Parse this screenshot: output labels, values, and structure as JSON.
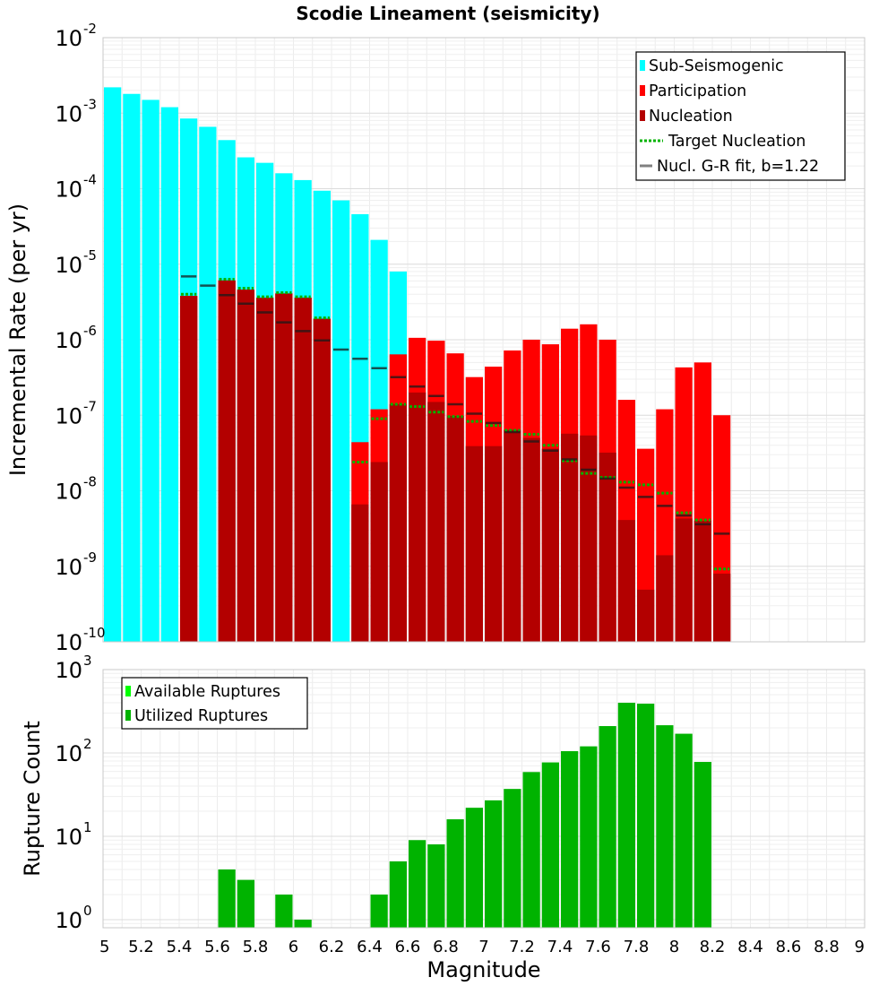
{
  "chart_data": [
    {
      "type": "bar",
      "title": "Scodie Lineament (seismicity)",
      "ylabel": "Incremental Rate (per yr)",
      "yscale": "log",
      "ylim": [
        1e-10,
        0.01
      ],
      "xlim": [
        5,
        9
      ],
      "y_tick_exponents": [
        -2,
        -3,
        -4,
        -5,
        -6,
        -7,
        -8,
        -9,
        -10
      ],
      "legend_position": "top-right",
      "grid": true,
      "colors": {
        "sub_seismogenic": "#00ffff",
        "participation": "#ff0000",
        "nucleation": "#b30000",
        "target_nucleation": "#00b300",
        "gr_fit": "#808080"
      },
      "legend": [
        {
          "label": "Sub-Seismogenic",
          "style": "bar",
          "color": "#00ffff"
        },
        {
          "label": "Participation",
          "style": "bar",
          "color": "#ff0000"
        },
        {
          "label": "Nucleation",
          "style": "bar",
          "color": "#b30000"
        },
        {
          "label": "Target Nucleation",
          "style": "dotted",
          "color": "#00b300"
        },
        {
          "label": "Nucl. G-R fit, b=1.22",
          "style": "line",
          "color": "#808080"
        }
      ],
      "x": [
        5.05,
        5.15,
        5.25,
        5.35,
        5.45,
        5.55,
        5.65,
        5.75,
        5.85,
        5.95,
        6.05,
        6.15,
        6.25,
        6.35,
        6.45,
        6.55,
        6.65,
        6.75,
        6.85,
        6.95,
        7.05,
        7.15,
        7.25,
        7.35,
        7.45,
        7.55,
        7.65,
        7.75,
        7.85,
        7.95,
        8.05,
        8.15,
        8.25
      ],
      "series": [
        {
          "name": "Sub-Seismogenic",
          "values": [
            0.0022,
            0.0018,
            0.0015,
            0.0012,
            0.00085,
            0.00066,
            0.00044,
            0.00026,
            0.00022,
            0.00016,
            0.00013,
            9.4e-05,
            7e-05,
            4.6e-05,
            2.1e-05,
            8e-06,
            null,
            null,
            null,
            null,
            null,
            null,
            null,
            null,
            null,
            null,
            null,
            null,
            null,
            null,
            null,
            null,
            null
          ]
        },
        {
          "name": "Participation",
          "values": [
            null,
            null,
            null,
            null,
            3.8e-06,
            null,
            6.1e-06,
            4.6e-06,
            3.6e-06,
            4.1e-06,
            3.6e-06,
            1.9e-06,
            null,
            4.4e-08,
            1.2e-07,
            6.4e-07,
            1.06e-06,
            9.7e-07,
            6.6e-07,
            3.2e-07,
            4.4e-07,
            7.2e-07,
            1e-06,
            8.7e-07,
            1.4e-06,
            1.6e-06,
            1e-06,
            1.6e-07,
            3.6e-08,
            1.2e-07,
            4.3e-07,
            5e-07,
            1e-07
          ]
        },
        {
          "name": "Nucleation",
          "values": [
            null,
            null,
            null,
            null,
            3.8e-06,
            null,
            6.1e-06,
            4.6e-06,
            3.6e-06,
            4.1e-06,
            3.6e-06,
            1.9e-06,
            null,
            6.6e-09,
            2.4e-08,
            1.4e-07,
            2e-07,
            1.5e-07,
            9.8e-08,
            3.9e-08,
            3.9e-08,
            6.4e-08,
            5e-08,
            3.6e-08,
            5.7e-08,
            5.4e-08,
            3.2e-08,
            4.1e-09,
            4.9e-10,
            1.4e-09,
            4.3e-09,
            4e-09,
            8e-10
          ]
        },
        {
          "name": "Target Nucleation",
          "values": [
            null,
            null,
            null,
            null,
            4e-06,
            null,
            6.3e-06,
            4.8e-06,
            3.7e-06,
            4.2e-06,
            3.7e-06,
            1.95e-06,
            null,
            2.4e-08,
            9e-08,
            1.4e-07,
            1.3e-07,
            1.1e-07,
            9.6e-08,
            8.3e-08,
            7.3e-08,
            6.3e-08,
            5.6e-08,
            4e-08,
            2.5e-08,
            1.7e-08,
            1.5e-08,
            1.3e-08,
            1.2e-08,
            9.3e-09,
            5.1e-09,
            4.1e-09,
            9.2e-10
          ]
        },
        {
          "name": "Nucl. G-R fit, b=1.22",
          "values": [
            null,
            null,
            null,
            null,
            6.9e-06,
            5.2e-06,
            3.9e-06,
            3e-06,
            2.3e-06,
            1.7e-06,
            1.3e-06,
            9.8e-07,
            7.4e-07,
            5.6e-07,
            4.2e-07,
            3.2e-07,
            2.4e-07,
            1.8e-07,
            1.4e-07,
            1.05e-07,
            7.9e-08,
            6e-08,
            4.5e-08,
            3.4e-08,
            2.6e-08,
            1.9e-08,
            1.45e-08,
            1.1e-08,
            8.3e-09,
            6.3e-09,
            4.7e-09,
            3.6e-09,
            2.7e-09
          ]
        }
      ]
    },
    {
      "type": "bar",
      "xlabel": "Magnitude",
      "ylabel": "Rupture Count",
      "yscale": "log",
      "ylim": [
        0.8,
        1000
      ],
      "xlim": [
        5,
        9
      ],
      "x_ticks": [
        "5",
        "5.2",
        "5.4",
        "5.6",
        "5.8",
        "6",
        "6.2",
        "6.4",
        "6.6",
        "6.8",
        "7",
        "7.2",
        "7.4",
        "7.6",
        "7.8",
        "8",
        "8.2",
        "8.4",
        "8.6",
        "8.8",
        "9"
      ],
      "y_tick_exponents": [
        3,
        2,
        1,
        0
      ],
      "legend_position": "top-left",
      "grid": true,
      "colors": {
        "available": "#00ff00",
        "utilized": "#00b300"
      },
      "legend": [
        {
          "label": "Available Ruptures",
          "style": "bar",
          "color": "#00ff00"
        },
        {
          "label": "Utilized Ruptures",
          "style": "bar",
          "color": "#00b300"
        }
      ],
      "x": [
        5.65,
        5.75,
        5.95,
        6.05,
        6.45,
        6.55,
        6.65,
        6.75,
        6.85,
        6.95,
        7.05,
        7.15,
        7.25,
        7.35,
        7.45,
        7.55,
        7.65,
        7.75,
        7.85,
        7.95,
        8.05,
        8.15
      ],
      "series": [
        {
          "name": "Utilized Ruptures",
          "values": [
            4,
            3,
            2,
            1,
            2,
            5,
            9,
            8,
            16,
            22,
            27,
            37,
            59,
            77,
            105,
            120,
            210,
            400,
            390,
            215,
            170,
            78
          ]
        }
      ]
    }
  ]
}
